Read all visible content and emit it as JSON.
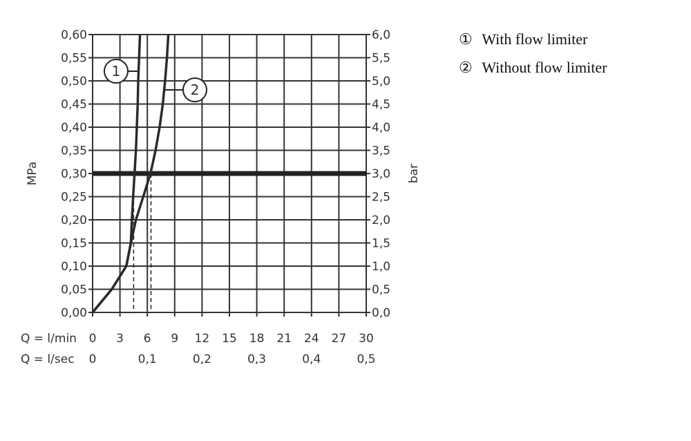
{
  "chart_data": {
    "type": "line",
    "title": "",
    "xlabel": "Q = l/min",
    "xlabel_secondary": "Q = l/sec",
    "ylabel": "MPa",
    "ylabel_right": "bar",
    "xlim": [
      0,
      30
    ],
    "ylim": [
      0,
      0.6
    ],
    "grid": true,
    "legend_position": "right",
    "x_ticks": [
      "0",
      "3",
      "6",
      "9",
      "12",
      "15",
      "18",
      "21",
      "24",
      "27",
      "30"
    ],
    "x_ticks_secondary": [
      {
        "at": 0,
        "label": "0"
      },
      {
        "at": 6,
        "label": "0,1"
      },
      {
        "at": 12,
        "label": "0,2"
      },
      {
        "at": 18,
        "label": "0,3"
      },
      {
        "at": 24,
        "label": "0,4"
      },
      {
        "at": 30,
        "label": "0,5"
      }
    ],
    "y_ticks": [
      "0,00",
      "0,05",
      "0,10",
      "0,15",
      "0,20",
      "0,25",
      "0,30",
      "0,35",
      "0,40",
      "0,45",
      "0,50",
      "0,55",
      "0,60"
    ],
    "y_ticks_right": [
      "0,0",
      "0,5",
      "1,0",
      "1,5",
      "2,0",
      "2,5",
      "3,0",
      "3,5",
      "4,0",
      "4,5",
      "5,0",
      "5,5",
      "6,0"
    ],
    "reference_line": {
      "y": 0.3,
      "label": "3,0 bar"
    },
    "series": [
      {
        "name": "1",
        "legend": "With flow limiter",
        "marker_label": "1",
        "points": [
          [
            0,
            0
          ],
          [
            2.1,
            0.05
          ],
          [
            3.7,
            0.1
          ],
          [
            4.2,
            0.15
          ],
          [
            4.3,
            0.2
          ],
          [
            4.45,
            0.25
          ],
          [
            4.6,
            0.3
          ],
          [
            4.75,
            0.35
          ],
          [
            4.85,
            0.4
          ],
          [
            4.95,
            0.45
          ],
          [
            5.0,
            0.5
          ],
          [
            5.1,
            0.55
          ],
          [
            5.2,
            0.6
          ]
        ],
        "operating_point": [
          4.5,
          0.3
        ]
      },
      {
        "name": "2",
        "legend": "Without flow limiter",
        "marker_label": "2",
        "points": [
          [
            0,
            0
          ],
          [
            2.1,
            0.05
          ],
          [
            3.7,
            0.1
          ],
          [
            4.2,
            0.15
          ],
          [
            4.75,
            0.2
          ],
          [
            5.55,
            0.25
          ],
          [
            6.35,
            0.3
          ],
          [
            6.9,
            0.35
          ],
          [
            7.35,
            0.4
          ],
          [
            7.7,
            0.45
          ],
          [
            7.95,
            0.5
          ],
          [
            8.15,
            0.55
          ],
          [
            8.3,
            0.6
          ]
        ],
        "operating_point": [
          6.4,
          0.3
        ]
      }
    ],
    "legend_entries": [
      {
        "symbol": "①",
        "text": "With flow limiter"
      },
      {
        "symbol": "②",
        "text": "Without flow limiter"
      }
    ]
  }
}
